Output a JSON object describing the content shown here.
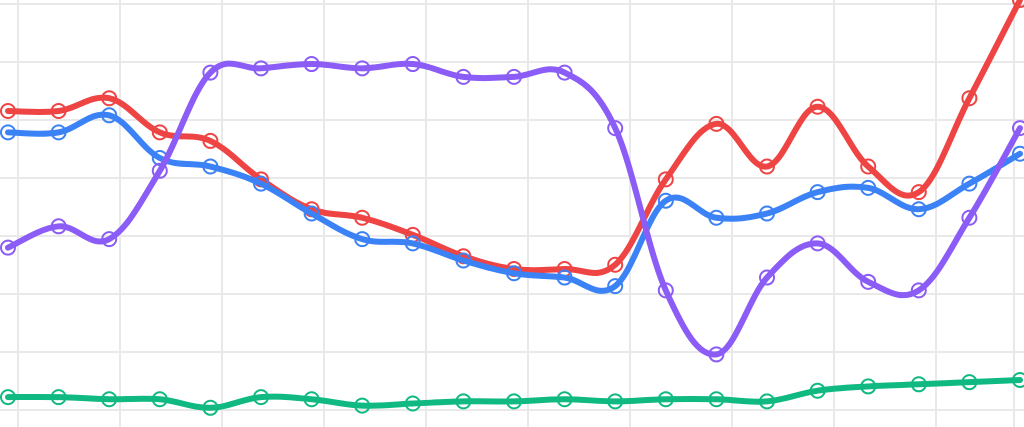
{
  "chart_data": {
    "type": "line",
    "title": "",
    "xlabel": "",
    "ylabel": "",
    "grid": true,
    "legend": "none",
    "x": [
      0,
      1,
      2,
      3,
      4,
      5,
      6,
      7,
      8,
      9,
      10,
      11,
      12,
      13,
      14,
      15,
      16,
      17,
      18,
      19,
      20
    ],
    "xlim": [
      0,
      20
    ],
    "ylim": [
      0,
      100
    ],
    "series": [
      {
        "color": "#ef4444",
        "values": [
          74,
          74,
          77,
          69,
          67,
          58,
          51,
          49,
          45,
          40,
          37,
          37,
          38,
          58,
          71,
          61,
          75,
          61,
          55,
          77,
          100
        ]
      },
      {
        "color": "#3b82f6",
        "values": [
          69,
          69,
          73,
          63,
          61,
          57,
          50,
          44,
          43,
          39,
          36,
          35,
          33,
          53,
          49,
          50,
          55,
          56,
          51,
          57,
          64
        ]
      },
      {
        "color": "#8b5cf6",
        "values": [
          42,
          47,
          44,
          60,
          83,
          84,
          85,
          84,
          85,
          82,
          82,
          83,
          70,
          32,
          17,
          35,
          43,
          34,
          32,
          49,
          70
        ]
      },
      {
        "color": "#10b981",
        "values": [
          7,
          7,
          6.5,
          6.5,
          4.5,
          7,
          6.5,
          5,
          5.5,
          6,
          6,
          6.5,
          6,
          6.5,
          6.5,
          6,
          8.5,
          9.5,
          10,
          10.5,
          11
        ]
      }
    ]
  }
}
